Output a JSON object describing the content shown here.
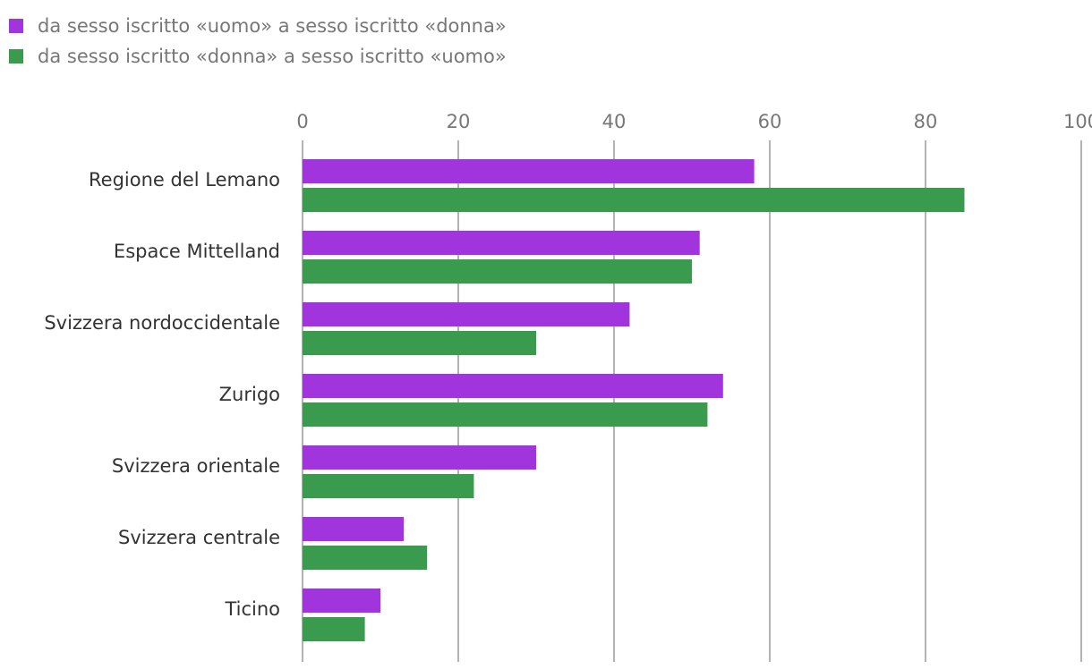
{
  "chart_data": {
    "type": "bar",
    "orientation": "horizontal",
    "title": "",
    "xlabel": "",
    "ylabel": "",
    "xlim": [
      0,
      100
    ],
    "ticks": [
      0,
      20,
      40,
      60,
      80,
      100
    ],
    "grid": true,
    "legend_position": "top-left",
    "categories": [
      "Regione del Lemano",
      "Espace Mittelland",
      "Svizzera nordoccidentale",
      "Zurigo",
      "Svizzera orientale",
      "Svizzera centrale",
      "Ticino"
    ],
    "series": [
      {
        "name": "da sesso iscritto «uomo» a sesso iscritto «donna»",
        "color": "#a234dd",
        "values": [
          58,
          51,
          42,
          54,
          30,
          13,
          10
        ]
      },
      {
        "name": "da sesso iscritto «donna» a sesso iscritto «uomo»",
        "color": "#3a9b4f",
        "values": [
          85,
          50,
          30,
          52,
          22,
          16,
          8
        ]
      }
    ]
  }
}
